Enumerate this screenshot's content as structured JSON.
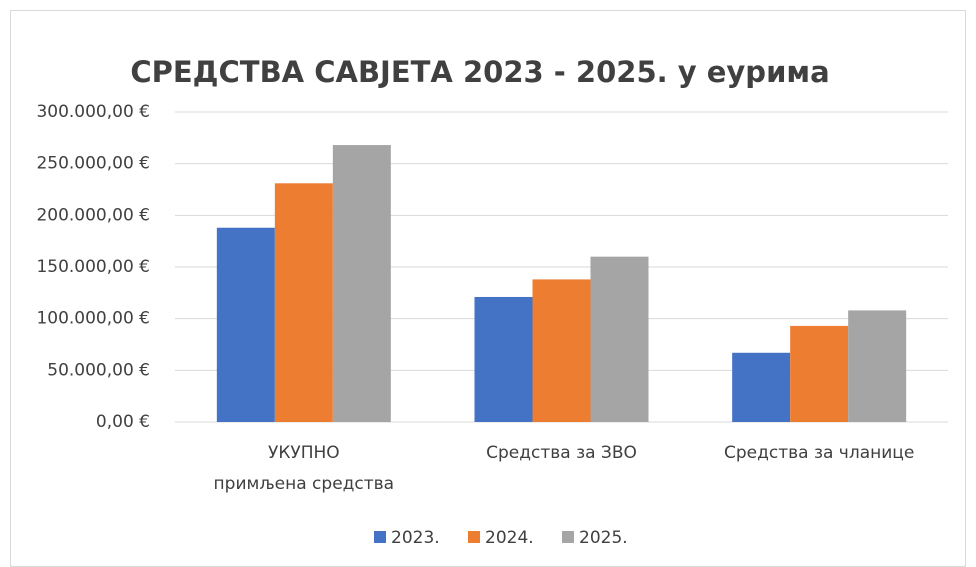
{
  "chart_data": {
    "type": "bar",
    "title": "СРЕДСТВА САВЈЕТА 2023 - 2025. у еурима",
    "categories": [
      "УКУПНО\nпримљена средства",
      "Средства за ЗВО",
      "Средства за чланице"
    ],
    "series": [
      {
        "name": "2023.",
        "color": "#4472c4",
        "values": [
          188000,
          121000,
          67000
        ]
      },
      {
        "name": "2024.",
        "color": "#ed7d31",
        "values": [
          231000,
          138000,
          93000
        ]
      },
      {
        "name": "2025.",
        "color": "#a5a5a5",
        "values": [
          268000,
          160000,
          108000
        ]
      }
    ],
    "ylim": [
      0,
      300000
    ],
    "yticks": [
      {
        "value": 0,
        "label": "0,00 €"
      },
      {
        "value": 50000,
        "label": "50.000,00 €"
      },
      {
        "value": 100000,
        "label": "100.000,00 €"
      },
      {
        "value": 150000,
        "label": "150.000,00 €"
      },
      {
        "value": 200000,
        "label": "200.000,00 €"
      },
      {
        "value": 250000,
        "label": "250.000,00 €"
      },
      {
        "value": 300000,
        "label": "300.000,00 €"
      }
    ],
    "grid": true,
    "legend": "bottom"
  }
}
